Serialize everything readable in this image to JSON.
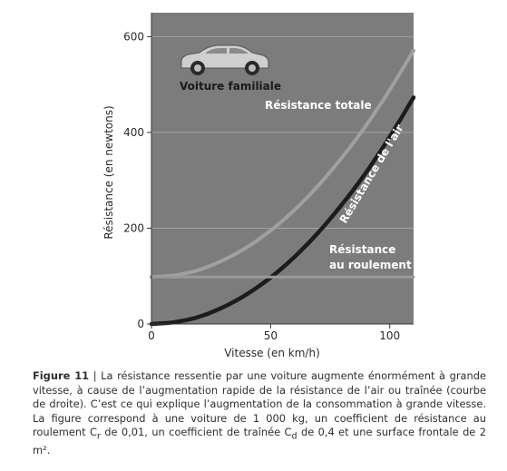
{
  "chart_data": {
    "type": "line",
    "ylabel": "Résistance (en newtons)",
    "xlabel": "Vitesse (en km/h)",
    "xlim": [
      0,
      110
    ],
    "ylim": [
      0,
      650
    ],
    "x_ticks": [
      0,
      50,
      100
    ],
    "y_ticks": [
      0,
      200,
      400,
      600
    ],
    "grid": "horizontal",
    "x": [
      0,
      10,
      20,
      30,
      40,
      50,
      60,
      70,
      80,
      90,
      100,
      110
    ],
    "series": [
      {
        "name": "Résistance totale",
        "color": "#a0a0a0",
        "values": [
          98,
          102,
          113,
          133,
          160,
          195,
          238,
          289,
          348,
          414,
          489,
          571
        ]
      },
      {
        "name": "Résistance de l'air",
        "color": "#1c1c1c",
        "values": [
          0,
          4,
          15,
          35,
          62,
          97,
          140,
          191,
          250,
          316,
          391,
          473
        ]
      },
      {
        "name": "Résistance au roulement",
        "color": "#9a9a9a",
        "values": [
          98,
          98,
          98,
          98,
          98,
          98,
          98,
          98,
          98,
          98,
          98,
          98
        ]
      }
    ],
    "labels": {
      "car": "Voiture familiale",
      "total": "Résistance totale",
      "air": "Résistance de l'air",
      "rolling_line1": "Résistance",
      "rolling_line2": "au roulement"
    },
    "colors": {
      "plot_bg": "#7c7c7c",
      "grid": "#a2a2a2",
      "label_text": "#ffffff",
      "car": "#cfcfcf"
    }
  },
  "caption": {
    "figure_label": "Figure 11",
    "separator": " | ",
    "text": "La résistance ressentie par une voiture augmente énormément à grande vitesse, à cause de l’augmentation rapide de la résistance de l’air ou traînée (courbe de droite). C’est ce qui explique l’augmentation de la consommation à grande vitesse. La figure correspond à une voiture de 1 000 kg, un coefficient de résistance au roulement C",
    "sub_r": "r",
    "text2": " de 0,01, un coefficient de traînée C",
    "sub_d": "d",
    "text3": " de 0,4 et une surface frontale de 2 m²."
  }
}
